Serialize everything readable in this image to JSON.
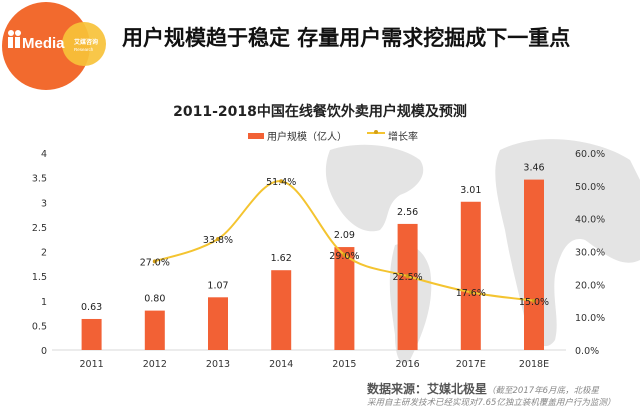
{
  "header": {
    "headline": "用户规模趋于稳定 存量用户需求挖掘成下一重点",
    "logo": {
      "brand": "iiMedia",
      "sub": "艾媒咨询 Research"
    }
  },
  "colors": {
    "bar": "#f26135",
    "line": "#f4c430",
    "marker": "#d4a017",
    "logo_orange": "#f26a2e",
    "logo_yellow": "#f7c23a"
  },
  "chart_data": {
    "type": "bar",
    "title": "2011-2018中国在线餐饮外卖用户规模及预测",
    "categories": [
      "2011",
      "2012",
      "2013",
      "2014",
      "2015",
      "2016",
      "2017E",
      "2018E"
    ],
    "series": [
      {
        "name": "用户规模（亿人）",
        "type": "bar",
        "axis": "left",
        "values": [
          0.63,
          0.8,
          1.07,
          1.62,
          2.09,
          2.56,
          3.01,
          3.46
        ],
        "labels": [
          "0.63",
          "0.80",
          "1.07",
          "1.62",
          "2.09",
          "2.56",
          "3.01",
          "3.46"
        ]
      },
      {
        "name": "增长率",
        "type": "line",
        "axis": "right",
        "values": [
          null,
          27.0,
          33.8,
          51.4,
          29.0,
          22.5,
          17.6,
          15.0
        ],
        "labels": [
          null,
          "27.0%",
          "33.8%",
          "51.4%",
          "29.0%",
          "22.5%",
          "17.6%",
          "15.0%"
        ]
      }
    ],
    "ylim": [
      0,
      4
    ],
    "y_ticks": [
      "0",
      "0.5",
      "1",
      "1.5",
      "2",
      "2.5",
      "3",
      "3.5",
      "4"
    ],
    "y2lim": [
      0,
      60
    ],
    "y2_ticks": [
      "0.0%",
      "10.0%",
      "20.0%",
      "30.0%",
      "40.0%",
      "50.0%",
      "60.0%"
    ],
    "legend": "top-center",
    "grid": false
  },
  "source": {
    "label": "数据来源：艾媒北极星",
    "note1": "（截至2017年6月底，北极星",
    "note2": "采用自主研发技术已经实现对7.65亿独立装机覆盖用户行为监测）"
  }
}
